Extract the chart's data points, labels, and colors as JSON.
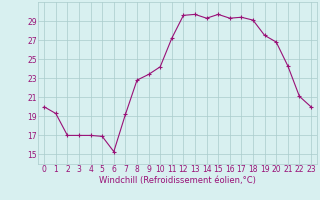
{
  "x": [
    0,
    1,
    2,
    3,
    4,
    5,
    6,
    7,
    8,
    9,
    10,
    11,
    12,
    13,
    14,
    15,
    16,
    17,
    18,
    19,
    20,
    21,
    22,
    23
  ],
  "y": [
    20.0,
    19.3,
    17.0,
    17.0,
    17.0,
    16.9,
    15.3,
    19.2,
    22.8,
    23.4,
    24.2,
    27.2,
    29.6,
    29.7,
    29.3,
    29.7,
    29.3,
    29.4,
    29.1,
    27.5,
    26.8,
    24.3,
    21.1,
    20.0
  ],
  "line_color": "#991177",
  "marker": "+",
  "bg_color": "#d8f0f0",
  "grid_color": "#aacccc",
  "tick_color": "#991177",
  "label_color": "#991177",
  "xlabel": "Windchill (Refroidissement éolien,°C)",
  "ylim": [
    14,
    31
  ],
  "yticks": [
    15,
    17,
    19,
    21,
    23,
    25,
    27,
    29
  ],
  "xlim": [
    -0.5,
    23.5
  ],
  "tick_fontsize": 5.5,
  "axis_fontsize": 6.0
}
